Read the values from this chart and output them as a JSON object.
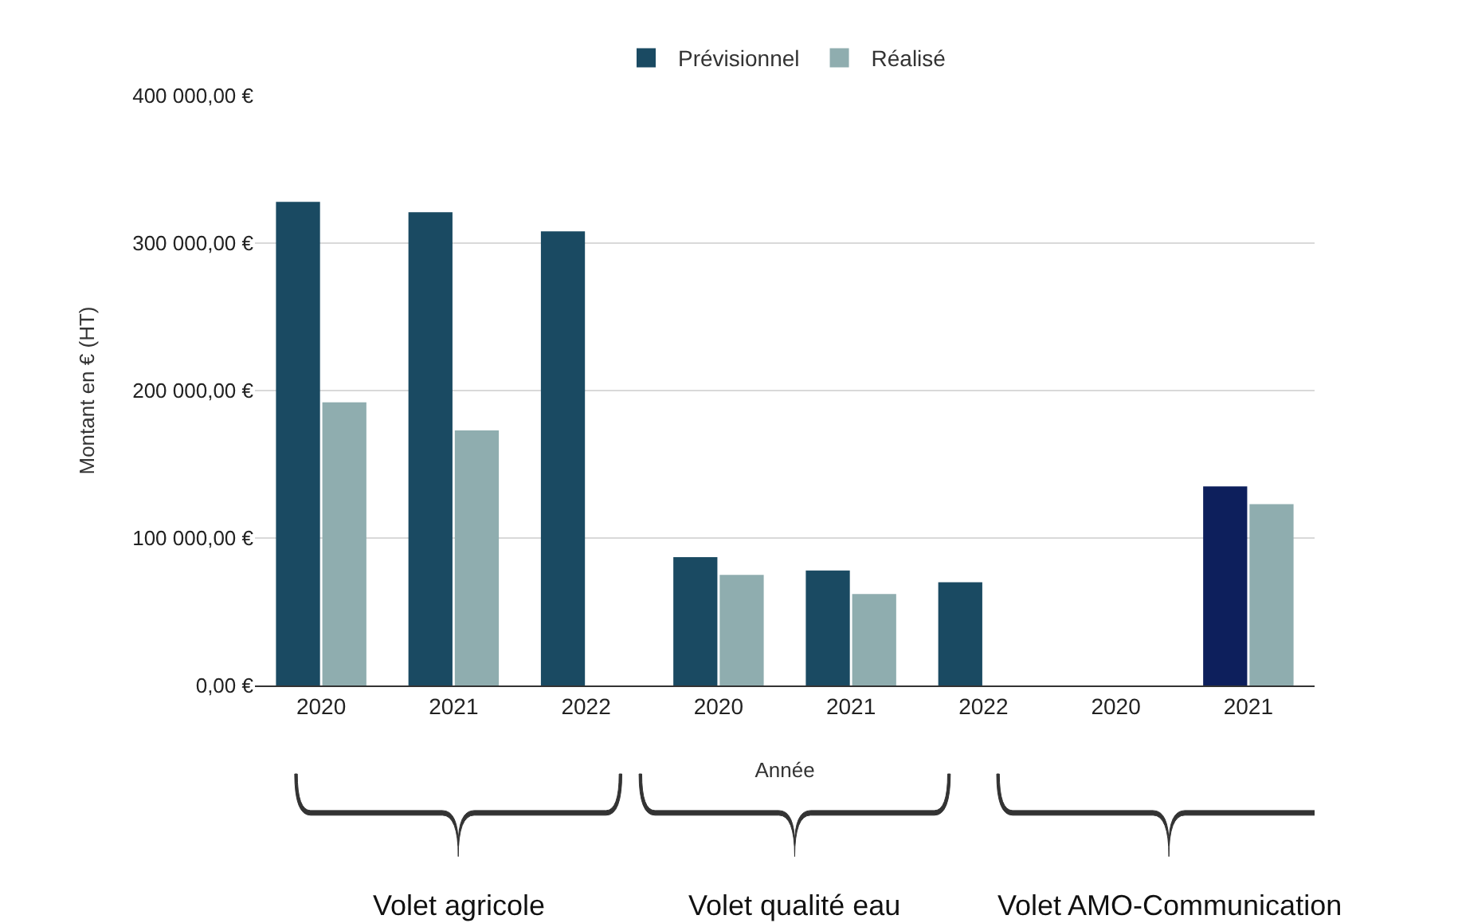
{
  "chart_data": {
    "type": "bar",
    "xlabel": "Année",
    "ylabel": "Montant en € (HT)",
    "categories": [
      "2020",
      "2021",
      "2022",
      "2020",
      "2021",
      "2022",
      "2020",
      "2021"
    ],
    "series": [
      {
        "name": "Prévisionnel",
        "color": "#1a4a62",
        "colors": [
          "#1a4a62",
          "#1a4a62",
          "#1a4a62",
          "#1a4a62",
          "#1a4a62",
          "#1a4a62",
          "#1a4a62",
          "#0d1f5c"
        ],
        "values": [
          328000,
          321000,
          308000,
          87000,
          78000,
          70000,
          null,
          135000
        ]
      },
      {
        "name": "Réalisé",
        "color": "#8fadaf",
        "values": [
          192000,
          173000,
          null,
          75000,
          62000,
          null,
          null,
          123000
        ]
      }
    ],
    "ylim": [
      0,
      400000
    ],
    "yticks": [
      {
        "value": 0,
        "label": "0,00 €"
      },
      {
        "value": 100000,
        "label": "100 000,00 €"
      },
      {
        "value": 200000,
        "label": "200 000,00 €"
      },
      {
        "value": 300000,
        "label": "300 000,00 €"
      },
      {
        "value": 400000,
        "label": "400 000,00 €"
      }
    ],
    "grid": "y",
    "legend": "top",
    "annotations": [
      "Volet agricole",
      "Volet qualité eau",
      "Volet AMO-Communication"
    ]
  }
}
